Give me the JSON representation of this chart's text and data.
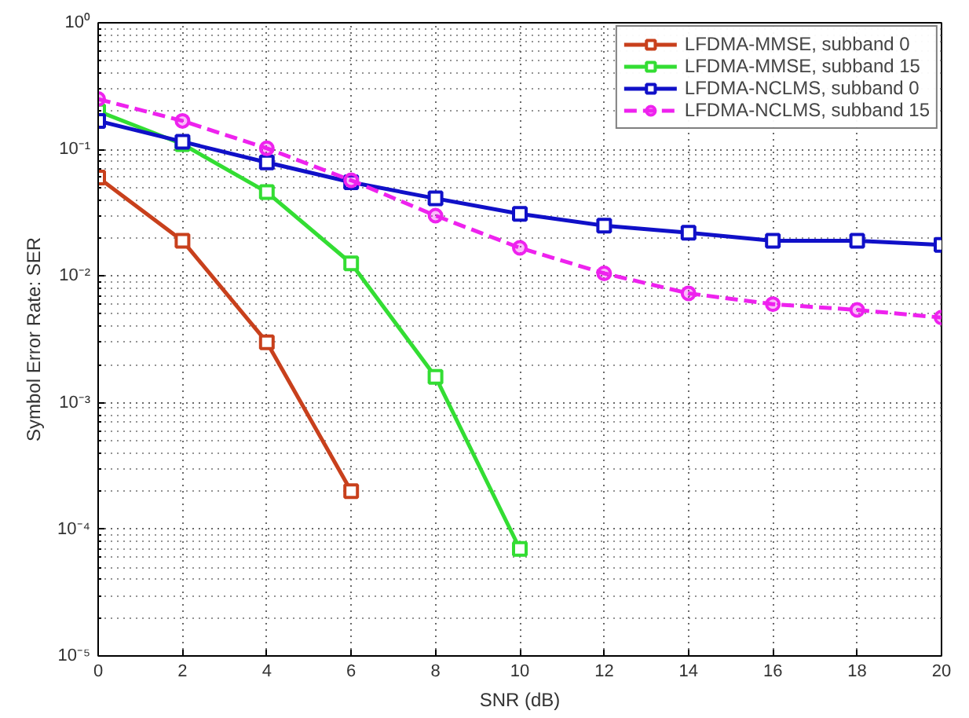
{
  "chart_data": {
    "type": "line",
    "xlabel": "SNR (dB)",
    "ylabel": "Symbol Error Rate: SER",
    "log": "y",
    "grid": true,
    "legend": "top right",
    "x": [
      0,
      2,
      4,
      6,
      8,
      10,
      12,
      14,
      16,
      18,
      20
    ],
    "xlim": [
      0,
      20
    ],
    "xticks": [
      0,
      2,
      4,
      6,
      8,
      10,
      12,
      14,
      16,
      18,
      20
    ],
    "ylim": [
      1e-05,
      1
    ],
    "yticks": [
      {
        "value": 1e-05,
        "label": "10⁻⁵"
      },
      {
        "value": 0.0001,
        "label": "10⁻⁴"
      },
      {
        "value": 0.001,
        "label": "10⁻³"
      },
      {
        "value": 0.01,
        "label": "10⁻²"
      },
      {
        "value": 0.1,
        "label": "10⁻¹"
      },
      {
        "value": 1,
        "label": "10⁰"
      }
    ],
    "series": [
      {
        "name": "LFDMA-MMSE, subband 0",
        "color": "#c8401c",
        "marker": "square",
        "line_style": "solid",
        "values": [
          0.06,
          0.019,
          0.003,
          0.0002,
          null,
          null,
          null,
          null,
          null,
          null,
          null
        ]
      },
      {
        "name": "LFDMA-MMSE, subband 15",
        "color": "#33dd33",
        "marker": "square",
        "line_style": "solid",
        "values": [
          0.2,
          0.11,
          0.046,
          0.0126,
          0.0016,
          7e-05,
          null,
          null,
          null,
          null,
          null
        ]
      },
      {
        "name": "LFDMA-NCLMS, subband 0",
        "color": "#1010c8",
        "marker": "square",
        "line_style": "solid",
        "values": [
          0.168,
          0.115,
          0.079,
          0.055,
          0.041,
          0.031,
          0.025,
          0.022,
          0.019,
          0.019,
          0.0176
        ]
      },
      {
        "name": "LFDMA-NCLMS, subband 15",
        "color": "#ee22ee",
        "marker": "circle",
        "line_style": "dashed",
        "values": [
          0.25,
          0.168,
          0.102,
          0.057,
          0.03,
          0.0167,
          0.0105,
          0.0073,
          0.006,
          0.0054,
          0.0047
        ]
      }
    ]
  }
}
